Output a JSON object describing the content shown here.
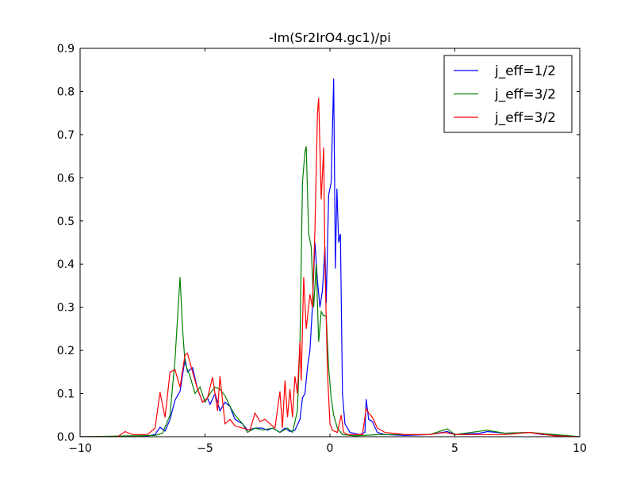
{
  "chart_data": {
    "type": "line",
    "title": "-Im(Sr2IrO4.gc1)/pi",
    "xlabel": "",
    "ylabel": "",
    "xlim": [
      -10,
      10
    ],
    "ylim": [
      0,
      0.9
    ],
    "xticks": [
      -10,
      -5,
      0,
      5,
      10
    ],
    "yticks": [
      0.0,
      0.1,
      0.2,
      0.3,
      0.4,
      0.5,
      0.6,
      0.7,
      0.8,
      0.9
    ],
    "grid": false,
    "legend_position": "top-right",
    "series": [
      {
        "name": "j_eff=1/2",
        "color": "#0000ff",
        "points": [
          [
            -10,
            0
          ],
          [
            -7.5,
            0
          ],
          [
            -7,
            0.005
          ],
          [
            -6.8,
            0.022
          ],
          [
            -6.6,
            0.013
          ],
          [
            -6.4,
            0.04
          ],
          [
            -6.2,
            0.085
          ],
          [
            -6.0,
            0.105
          ],
          [
            -5.8,
            0.18
          ],
          [
            -5.7,
            0.15
          ],
          [
            -5.5,
            0.16
          ],
          [
            -5.3,
            0.11
          ],
          [
            -5.1,
            0.08
          ],
          [
            -4.9,
            0.09
          ],
          [
            -4.8,
            0.075
          ],
          [
            -4.6,
            0.1
          ],
          [
            -4.4,
            0.06
          ],
          [
            -4.2,
            0.08
          ],
          [
            -4.0,
            0.07
          ],
          [
            -3.8,
            0.04
          ],
          [
            -3.5,
            0.03
          ],
          [
            -3.3,
            0.015
          ],
          [
            -3.0,
            0.02
          ],
          [
            -2.7,
            0.02
          ],
          [
            -2.5,
            0.015
          ],
          [
            -2.3,
            0.02
          ],
          [
            -2.0,
            0.01
          ],
          [
            -1.8,
            0.02
          ],
          [
            -1.6,
            0.012
          ],
          [
            -1.4,
            0.015
          ],
          [
            -1.2,
            0.04
          ],
          [
            -1.1,
            0.09
          ],
          [
            -1.0,
            0.1
          ],
          [
            -0.9,
            0.16
          ],
          [
            -0.8,
            0.2
          ],
          [
            -0.7,
            0.3
          ],
          [
            -0.6,
            0.45
          ],
          [
            -0.5,
            0.36
          ],
          [
            -0.4,
            0.3
          ],
          [
            -0.3,
            0.34
          ],
          [
            -0.2,
            0.44
          ],
          [
            -0.15,
            0.31
          ],
          [
            -0.05,
            0.56
          ],
          [
            0.05,
            0.59
          ],
          [
            0.15,
            0.83
          ],
          [
            0.22,
            0.39
          ],
          [
            0.28,
            0.575
          ],
          [
            0.35,
            0.45
          ],
          [
            0.42,
            0.47
          ],
          [
            0.5,
            0.1
          ],
          [
            0.6,
            0.03
          ],
          [
            0.8,
            0.01
          ],
          [
            1.2,
            0.005
          ],
          [
            1.4,
            0.01
          ],
          [
            1.45,
            0.087
          ],
          [
            1.55,
            0.04
          ],
          [
            1.7,
            0.035
          ],
          [
            1.9,
            0.01
          ],
          [
            2.2,
            0.005
          ],
          [
            3,
            0.003
          ],
          [
            4,
            0.005
          ],
          [
            4.7,
            0.012
          ],
          [
            5,
            0.005
          ],
          [
            6,
            0.008
          ],
          [
            6.3,
            0.012
          ],
          [
            7,
            0.008
          ],
          [
            8,
            0.01
          ],
          [
            8.5,
            0.005
          ],
          [
            10,
            0
          ]
        ]
      },
      {
        "name": "j_eff=3/2",
        "color": "#008000",
        "points": [
          [
            -10,
            0
          ],
          [
            -7,
            0.003
          ],
          [
            -6.7,
            0.008
          ],
          [
            -6.4,
            0.05
          ],
          [
            -6.2,
            0.18
          ],
          [
            -6.0,
            0.37
          ],
          [
            -5.9,
            0.25
          ],
          [
            -5.8,
            0.17
          ],
          [
            -5.6,
            0.14
          ],
          [
            -5.4,
            0.1
          ],
          [
            -5.2,
            0.115
          ],
          [
            -5.0,
            0.08
          ],
          [
            -4.8,
            0.1
          ],
          [
            -4.6,
            0.115
          ],
          [
            -4.4,
            0.11
          ],
          [
            -4.2,
            0.095
          ],
          [
            -4.0,
            0.07
          ],
          [
            -3.8,
            0.05
          ],
          [
            -3.5,
            0.03
          ],
          [
            -3.3,
            0.01
          ],
          [
            -3.0,
            0.02
          ],
          [
            -2.7,
            0.015
          ],
          [
            -2.3,
            0.02
          ],
          [
            -2.0,
            0.01
          ],
          [
            -1.7,
            0.02
          ],
          [
            -1.5,
            0.01
          ],
          [
            -1.3,
            0.06
          ],
          [
            -1.2,
            0.22
          ],
          [
            -1.1,
            0.59
          ],
          [
            -1.0,
            0.66
          ],
          [
            -0.95,
            0.673
          ],
          [
            -0.85,
            0.47
          ],
          [
            -0.75,
            0.44
          ],
          [
            -0.65,
            0.3
          ],
          [
            -0.55,
            0.4
          ],
          [
            -0.45,
            0.22
          ],
          [
            -0.35,
            0.29
          ],
          [
            -0.25,
            0.28
          ],
          [
            -0.15,
            0.28
          ],
          [
            -0.05,
            0.16
          ],
          [
            0.05,
            0.09
          ],
          [
            0.15,
            0.05
          ],
          [
            0.3,
            0.02
          ],
          [
            0.5,
            0.005
          ],
          [
            1.0,
            0.002
          ],
          [
            2,
            0.005
          ],
          [
            3,
            0.005
          ],
          [
            4,
            0.005
          ],
          [
            4.7,
            0.018
          ],
          [
            5,
            0.005
          ],
          [
            6.3,
            0.015
          ],
          [
            7,
            0.008
          ],
          [
            8,
            0.01
          ],
          [
            10,
            0
          ]
        ]
      },
      {
        "name": "j_eff=3/2",
        "color": "#ff0000",
        "points": [
          [
            -10,
            0
          ],
          [
            -8.5,
            0
          ],
          [
            -8.2,
            0.012
          ],
          [
            -7.9,
            0.005
          ],
          [
            -7.3,
            0.005
          ],
          [
            -7.0,
            0.02
          ],
          [
            -6.8,
            0.103
          ],
          [
            -6.6,
            0.045
          ],
          [
            -6.4,
            0.15
          ],
          [
            -6.2,
            0.155
          ],
          [
            -6.0,
            0.115
          ],
          [
            -5.8,
            0.19
          ],
          [
            -5.7,
            0.193
          ],
          [
            -5.5,
            0.15
          ],
          [
            -5.3,
            0.11
          ],
          [
            -5.1,
            0.08
          ],
          [
            -4.9,
            0.09
          ],
          [
            -4.7,
            0.138
          ],
          [
            -4.5,
            0.06
          ],
          [
            -4.4,
            0.14
          ],
          [
            -4.2,
            0.03
          ],
          [
            -4.0,
            0.04
          ],
          [
            -3.8,
            0.025
          ],
          [
            -3.5,
            0.02
          ],
          [
            -3.2,
            0.015
          ],
          [
            -3.0,
            0.055
          ],
          [
            -2.8,
            0.035
          ],
          [
            -2.6,
            0.04
          ],
          [
            -2.4,
            0.03
          ],
          [
            -2.2,
            0.02
          ],
          [
            -2.0,
            0.105
          ],
          [
            -1.9,
            0.02
          ],
          [
            -1.8,
            0.13
          ],
          [
            -1.7,
            0.045
          ],
          [
            -1.6,
            0.11
          ],
          [
            -1.5,
            0.045
          ],
          [
            -1.4,
            0.14
          ],
          [
            -1.3,
            0.1
          ],
          [
            -1.2,
            0.22
          ],
          [
            -1.15,
            0.13
          ],
          [
            -1.05,
            0.37
          ],
          [
            -0.95,
            0.25
          ],
          [
            -0.8,
            0.33
          ],
          [
            -0.7,
            0.3
          ],
          [
            -0.6,
            0.48
          ],
          [
            -0.5,
            0.75
          ],
          [
            -0.45,
            0.785
          ],
          [
            -0.35,
            0.55
          ],
          [
            -0.25,
            0.67
          ],
          [
            -0.2,
            0.4
          ],
          [
            -0.1,
            0.15
          ],
          [
            0,
            0.03
          ],
          [
            0.1,
            0.015
          ],
          [
            0.3,
            0.01
          ],
          [
            0.45,
            0.05
          ],
          [
            0.55,
            0.01
          ],
          [
            0.7,
            0.005
          ],
          [
            1.3,
            0.005
          ],
          [
            1.45,
            0.065
          ],
          [
            1.55,
            0.055
          ],
          [
            1.7,
            0.045
          ],
          [
            1.9,
            0.02
          ],
          [
            2.2,
            0.01
          ],
          [
            3,
            0.005
          ],
          [
            4,
            0.005
          ],
          [
            4.6,
            0.01
          ],
          [
            5,
            0.005
          ],
          [
            6,
            0.005
          ],
          [
            7,
            0.005
          ],
          [
            8,
            0.01
          ],
          [
            9,
            0.002
          ],
          [
            10,
            0
          ]
        ]
      }
    ]
  }
}
